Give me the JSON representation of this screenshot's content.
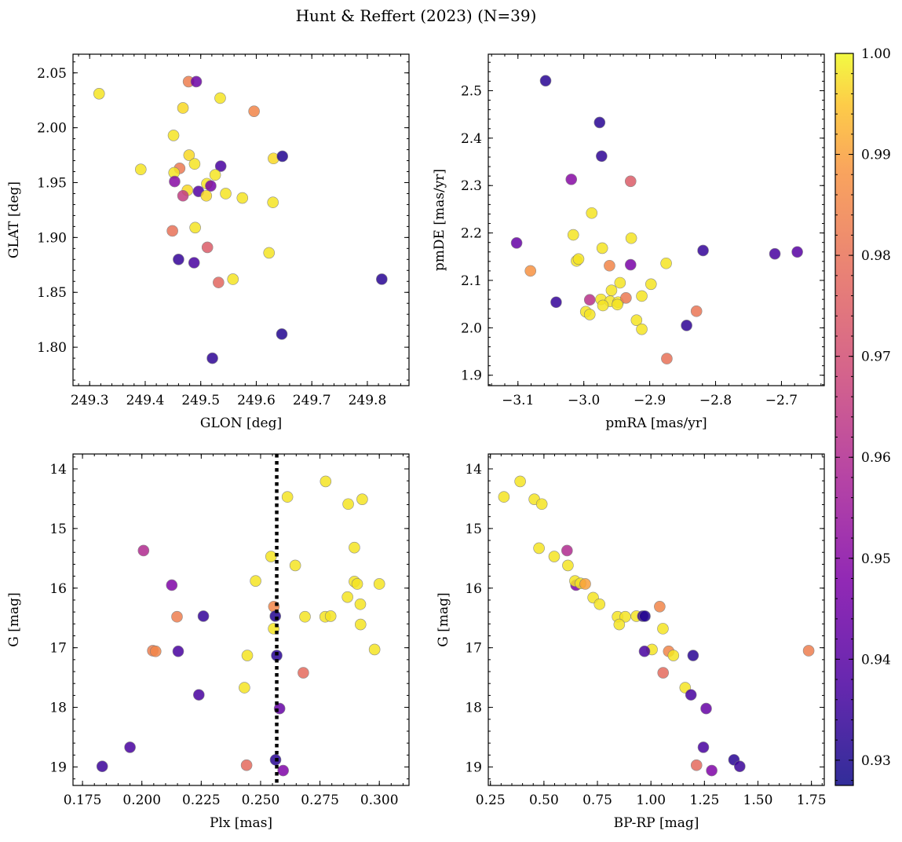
{
  "figure": {
    "title": "Hunt & Reffert (2023) (N=39)"
  },
  "colorbar": {
    "colormap": "plasma",
    "range": [
      0.9275,
      1.0
    ],
    "ticks": [
      0.93,
      0.94,
      0.95,
      0.96,
      0.97,
      0.98,
      0.99,
      1.0
    ],
    "tick_labels": [
      "0.93",
      "0.94",
      "0.95",
      "0.96",
      "0.97",
      "0.98",
      "0.99",
      "1.00"
    ]
  },
  "chart_data": [
    {
      "id": "pos",
      "type": "scatter",
      "xlabel": "GLON [deg]",
      "ylabel": "GLAT [deg]",
      "xlim": [
        249.27,
        249.875
      ],
      "ylim": [
        1.765,
        2.067
      ],
      "yinvert": false,
      "xticks": [
        249.3,
        249.4,
        249.5,
        249.6,
        249.7,
        249.8
      ],
      "xtick_labels": [
        "249.3",
        "249.4",
        "249.5",
        "249.6",
        "249.7",
        "249.8"
      ],
      "yticks": [
        1.8,
        1.85,
        1.9,
        1.95,
        2.0,
        2.05
      ],
      "ytick_labels": [
        "1.80",
        "1.85",
        "1.90",
        "1.95",
        "2.00",
        "2.05"
      ],
      "points": [
        {
          "x": 249.317,
          "y": 2.031,
          "c": 0.998
        },
        {
          "x": 249.478,
          "y": 2.042,
          "c": 0.983
        },
        {
          "x": 249.492,
          "y": 2.042,
          "c": 0.944
        },
        {
          "x": 249.468,
          "y": 2.018,
          "c": 0.997
        },
        {
          "x": 249.535,
          "y": 2.027,
          "c": 0.998
        },
        {
          "x": 249.596,
          "y": 2.015,
          "c": 0.985
        },
        {
          "x": 249.451,
          "y": 1.993,
          "c": 0.998
        },
        {
          "x": 249.479,
          "y": 1.975,
          "c": 0.997
        },
        {
          "x": 249.489,
          "y": 1.967,
          "c": 0.998
        },
        {
          "x": 249.462,
          "y": 1.963,
          "c": 0.982
        },
        {
          "x": 249.452,
          "y": 1.959,
          "c": 0.998
        },
        {
          "x": 249.392,
          "y": 1.962,
          "c": 0.998
        },
        {
          "x": 249.536,
          "y": 1.965,
          "c": 0.937
        },
        {
          "x": 249.526,
          "y": 1.957,
          "c": 0.998
        },
        {
          "x": 249.631,
          "y": 1.972,
          "c": 0.997
        },
        {
          "x": 249.647,
          "y": 1.974,
          "c": 0.931
        },
        {
          "x": 249.453,
          "y": 1.951,
          "c": 0.95
        },
        {
          "x": 249.476,
          "y": 1.943,
          "c": 0.997
        },
        {
          "x": 249.496,
          "y": 1.942,
          "c": 0.939
        },
        {
          "x": 249.511,
          "y": 1.949,
          "c": 0.998
        },
        {
          "x": 249.518,
          "y": 1.947,
          "c": 0.946
        },
        {
          "x": 249.468,
          "y": 1.938,
          "c": 0.965
        },
        {
          "x": 249.51,
          "y": 1.938,
          "c": 0.997
        },
        {
          "x": 249.545,
          "y": 1.94,
          "c": 0.998
        },
        {
          "x": 249.575,
          "y": 1.936,
          "c": 0.998
        },
        {
          "x": 249.63,
          "y": 1.932,
          "c": 0.998
        },
        {
          "x": 249.449,
          "y": 1.906,
          "c": 0.98
        },
        {
          "x": 249.49,
          "y": 1.909,
          "c": 0.998
        },
        {
          "x": 249.512,
          "y": 1.891,
          "c": 0.974
        },
        {
          "x": 249.623,
          "y": 1.886,
          "c": 0.998
        },
        {
          "x": 249.46,
          "y": 1.88,
          "c": 0.934
        },
        {
          "x": 249.488,
          "y": 1.877,
          "c": 0.937
        },
        {
          "x": 249.532,
          "y": 1.859,
          "c": 0.977
        },
        {
          "x": 249.558,
          "y": 1.862,
          "c": 0.998
        },
        {
          "x": 249.826,
          "y": 1.862,
          "c": 0.932
        },
        {
          "x": 249.646,
          "y": 1.812,
          "c": 0.931
        },
        {
          "x": 249.521,
          "y": 1.79,
          "c": 0.933
        }
      ]
    },
    {
      "id": "pm",
      "type": "scatter",
      "xlabel": "pmRA [mas/yr]",
      "ylabel": "pmDE [mas/yr]",
      "xlim": [
        -3.145,
        -2.635
      ],
      "ylim": [
        1.878,
        2.577
      ],
      "yinvert": false,
      "xticks": [
        -3.1,
        -3.0,
        -2.9,
        -2.8,
        -2.7
      ],
      "xtick_labels": [
        "−3.1",
        "−3.0",
        "−2.9",
        "−2.8",
        "−2.7"
      ],
      "yticks": [
        1.9,
        2.0,
        2.1,
        2.2,
        2.3,
        2.4,
        2.5
      ],
      "ytick_labels": [
        "1.9",
        "2.0",
        "2.1",
        "2.2",
        "2.3",
        "2.4",
        "2.5"
      ],
      "points": [
        {
          "x": -3.058,
          "y": 2.521,
          "c": 0.932
        },
        {
          "x": -2.976,
          "y": 2.433,
          "c": 0.932
        },
        {
          "x": -2.973,
          "y": 2.362,
          "c": 0.933
        },
        {
          "x": -3.019,
          "y": 2.313,
          "c": 0.95
        },
        {
          "x": -2.929,
          "y": 2.309,
          "c": 0.974
        },
        {
          "x": -2.988,
          "y": 2.242,
          "c": 0.998
        },
        {
          "x": -3.016,
          "y": 2.196,
          "c": 0.998
        },
        {
          "x": -2.928,
          "y": 2.189,
          "c": 0.998
        },
        {
          "x": -3.102,
          "y": 2.179,
          "c": 0.943
        },
        {
          "x": -2.972,
          "y": 2.168,
          "c": 0.998
        },
        {
          "x": -2.819,
          "y": 2.163,
          "c": 0.934
        },
        {
          "x": -2.71,
          "y": 2.156,
          "c": 0.937
        },
        {
          "x": -2.676,
          "y": 2.16,
          "c": 0.94
        },
        {
          "x": -3.081,
          "y": 2.12,
          "c": 0.988
        },
        {
          "x": -3.011,
          "y": 2.141,
          "c": 0.998
        },
        {
          "x": -3.008,
          "y": 2.145,
          "c": 0.998
        },
        {
          "x": -2.961,
          "y": 2.131,
          "c": 0.985
        },
        {
          "x": -2.929,
          "y": 2.133,
          "c": 0.947
        },
        {
          "x": -2.875,
          "y": 2.136,
          "c": 0.998
        },
        {
          "x": -2.945,
          "y": 2.095,
          "c": 0.998
        },
        {
          "x": -2.898,
          "y": 2.092,
          "c": 0.998
        },
        {
          "x": -2.958,
          "y": 2.079,
          "c": 0.998
        },
        {
          "x": -2.912,
          "y": 2.067,
          "c": 0.998
        },
        {
          "x": -2.974,
          "y": 2.06,
          "c": 0.998
        },
        {
          "x": -2.991,
          "y": 2.059,
          "c": 0.962
        },
        {
          "x": -2.96,
          "y": 2.056,
          "c": 0.998
        },
        {
          "x": -2.948,
          "y": 2.054,
          "c": 0.998
        },
        {
          "x": -2.936,
          "y": 2.063,
          "c": 0.982
        },
        {
          "x": -2.971,
          "y": 2.047,
          "c": 0.998
        },
        {
          "x": -2.949,
          "y": 2.049,
          "c": 0.998
        },
        {
          "x": -3.042,
          "y": 2.054,
          "c": 0.934
        },
        {
          "x": -2.997,
          "y": 2.034,
          "c": 0.998
        },
        {
          "x": -2.991,
          "y": 2.028,
          "c": 0.998
        },
        {
          "x": -2.829,
          "y": 2.035,
          "c": 0.981
        },
        {
          "x": -2.92,
          "y": 2.016,
          "c": 0.998
        },
        {
          "x": -2.844,
          "y": 2.005,
          "c": 0.933
        },
        {
          "x": -2.912,
          "y": 1.997,
          "c": 0.998
        },
        {
          "x": -2.874,
          "y": 1.935,
          "c": 0.98
        }
      ]
    },
    {
      "id": "plx",
      "type": "scatter",
      "xlabel": "Plx [mas]",
      "ylabel": "G [mag]",
      "xlim": [
        0.171,
        0.3125
      ],
      "ylim": [
        13.75,
        19.31
      ],
      "yinvert": true,
      "xticks": [
        0.175,
        0.2,
        0.225,
        0.25,
        0.275,
        0.3
      ],
      "xtick_labels": [
        "0.175",
        "0.200",
        "0.225",
        "0.250",
        "0.275",
        "0.300"
      ],
      "yticks": [
        14,
        15,
        16,
        17,
        18,
        19
      ],
      "ytick_labels": [
        "14",
        "15",
        "16",
        "17",
        "18",
        "19"
      ],
      "vline": 0.2568,
      "points": [
        {
          "x": 0.2774,
          "y": 14.21,
          "c": 0.998
        },
        {
          "x": 0.2613,
          "y": 14.47,
          "c": 0.998
        },
        {
          "x": 0.2928,
          "y": 14.51,
          "c": 0.998
        },
        {
          "x": 0.2869,
          "y": 14.59,
          "c": 0.998
        },
        {
          "x": 0.2007,
          "y": 15.37,
          "c": 0.96
        },
        {
          "x": 0.2895,
          "y": 15.32,
          "c": 0.998
        },
        {
          "x": 0.2544,
          "y": 15.47,
          "c": 0.998
        },
        {
          "x": 0.2646,
          "y": 15.62,
          "c": 0.998
        },
        {
          "x": 0.2126,
          "y": 15.95,
          "c": 0.948
        },
        {
          "x": 0.2479,
          "y": 15.88,
          "c": 0.998
        },
        {
          "x": 0.2895,
          "y": 15.89,
          "c": 0.998
        },
        {
          "x": 0.2907,
          "y": 15.93,
          "c": 0.998
        },
        {
          "x": 0.3,
          "y": 15.93,
          "c": 0.998
        },
        {
          "x": 0.2866,
          "y": 16.15,
          "c": 0.998
        },
        {
          "x": 0.292,
          "y": 16.27,
          "c": 0.998
        },
        {
          "x": 0.2556,
          "y": 16.31,
          "c": 0.985
        },
        {
          "x": 0.2148,
          "y": 16.48,
          "c": 0.983
        },
        {
          "x": 0.2259,
          "y": 16.47,
          "c": 0.934
        },
        {
          "x": 0.2562,
          "y": 16.47,
          "c": 0.931
        },
        {
          "x": 0.2687,
          "y": 16.48,
          "c": 0.998
        },
        {
          "x": 0.2772,
          "y": 16.48,
          "c": 0.998
        },
        {
          "x": 0.2795,
          "y": 16.47,
          "c": 0.998
        },
        {
          "x": 0.2921,
          "y": 16.61,
          "c": 0.998
        },
        {
          "x": 0.2555,
          "y": 16.68,
          "c": 0.998
        },
        {
          "x": 0.2046,
          "y": 17.05,
          "c": 0.983
        },
        {
          "x": 0.2058,
          "y": 17.06,
          "c": 0.985
        },
        {
          "x": 0.2153,
          "y": 17.06,
          "c": 0.937
        },
        {
          "x": 0.298,
          "y": 17.03,
          "c": 0.998
        },
        {
          "x": 0.2444,
          "y": 17.13,
          "c": 0.998
        },
        {
          "x": 0.2568,
          "y": 17.13,
          "c": 0.932
        },
        {
          "x": 0.268,
          "y": 17.42,
          "c": 0.978
        },
        {
          "x": 0.2432,
          "y": 17.67,
          "c": 0.998
        },
        {
          "x": 0.224,
          "y": 17.79,
          "c": 0.937
        },
        {
          "x": 0.258,
          "y": 18.02,
          "c": 0.943
        },
        {
          "x": 0.195,
          "y": 18.67,
          "c": 0.937
        },
        {
          "x": 0.2563,
          "y": 18.88,
          "c": 0.932
        },
        {
          "x": 0.1833,
          "y": 18.99,
          "c": 0.935
        },
        {
          "x": 0.2441,
          "y": 18.97,
          "c": 0.978
        },
        {
          "x": 0.2595,
          "y": 19.06,
          "c": 0.948
        }
      ]
    },
    {
      "id": "cmd",
      "type": "scatter",
      "xlabel": "BP-RP [mag]",
      "ylabel": "G [mag]",
      "xlim": [
        0.24,
        1.81
      ],
      "ylim": [
        13.75,
        19.31
      ],
      "yinvert": true,
      "xticks": [
        0.25,
        0.5,
        0.75,
        1.0,
        1.25,
        1.5,
        1.75
      ],
      "xtick_labels": [
        "0.25",
        "0.50",
        "0.75",
        "1.00",
        "1.25",
        "1.50",
        "1.75"
      ],
      "yticks": [
        14,
        15,
        16,
        17,
        18,
        19
      ],
      "ytick_labels": [
        "14",
        "15",
        "16",
        "17",
        "18",
        "19"
      ],
      "points": [
        {
          "x": 0.389,
          "y": 14.21,
          "c": 0.998
        },
        {
          "x": 0.313,
          "y": 14.47,
          "c": 0.998
        },
        {
          "x": 0.455,
          "y": 14.51,
          "c": 0.998
        },
        {
          "x": 0.49,
          "y": 14.59,
          "c": 0.998
        },
        {
          "x": 0.608,
          "y": 15.37,
          "c": 0.96
        },
        {
          "x": 0.477,
          "y": 15.33,
          "c": 0.998
        },
        {
          "x": 0.548,
          "y": 15.47,
          "c": 0.998
        },
        {
          "x": 0.612,
          "y": 15.62,
          "c": 0.998
        },
        {
          "x": 0.65,
          "y": 15.95,
          "c": 0.948
        },
        {
          "x": 0.645,
          "y": 15.88,
          "c": 0.998
        },
        {
          "x": 0.671,
          "y": 15.92,
          "c": 0.998
        },
        {
          "x": 0.693,
          "y": 15.93,
          "c": 0.99
        },
        {
          "x": 0.73,
          "y": 16.16,
          "c": 0.998
        },
        {
          "x": 0.76,
          "y": 16.27,
          "c": 0.998
        },
        {
          "x": 1.041,
          "y": 16.31,
          "c": 0.985
        },
        {
          "x": 0.844,
          "y": 16.48,
          "c": 0.998
        },
        {
          "x": 0.88,
          "y": 16.48,
          "c": 0.998
        },
        {
          "x": 0.932,
          "y": 16.47,
          "c": 0.998
        },
        {
          "x": 0.962,
          "y": 16.47,
          "c": 0.934
        },
        {
          "x": 0.972,
          "y": 16.47,
          "c": 0.931
        },
        {
          "x": 0.852,
          "y": 16.61,
          "c": 0.998
        },
        {
          "x": 1.056,
          "y": 16.68,
          "c": 0.998
        },
        {
          "x": 1.005,
          "y": 17.03,
          "c": 0.998
        },
        {
          "x": 0.97,
          "y": 17.06,
          "c": 0.937
        },
        {
          "x": 1.083,
          "y": 17.06,
          "c": 0.985
        },
        {
          "x": 1.105,
          "y": 17.13,
          "c": 0.998
        },
        {
          "x": 1.197,
          "y": 17.13,
          "c": 0.932
        },
        {
          "x": 1.737,
          "y": 17.05,
          "c": 0.983
        },
        {
          "x": 1.057,
          "y": 17.42,
          "c": 0.978
        },
        {
          "x": 1.16,
          "y": 17.67,
          "c": 0.998
        },
        {
          "x": 1.187,
          "y": 17.79,
          "c": 0.937
        },
        {
          "x": 1.258,
          "y": 18.02,
          "c": 0.943
        },
        {
          "x": 1.245,
          "y": 18.67,
          "c": 0.937
        },
        {
          "x": 1.388,
          "y": 18.88,
          "c": 0.932
        },
        {
          "x": 1.415,
          "y": 18.99,
          "c": 0.935
        },
        {
          "x": 1.213,
          "y": 18.97,
          "c": 0.978
        },
        {
          "x": 1.284,
          "y": 19.06,
          "c": 0.948
        }
      ]
    }
  ]
}
